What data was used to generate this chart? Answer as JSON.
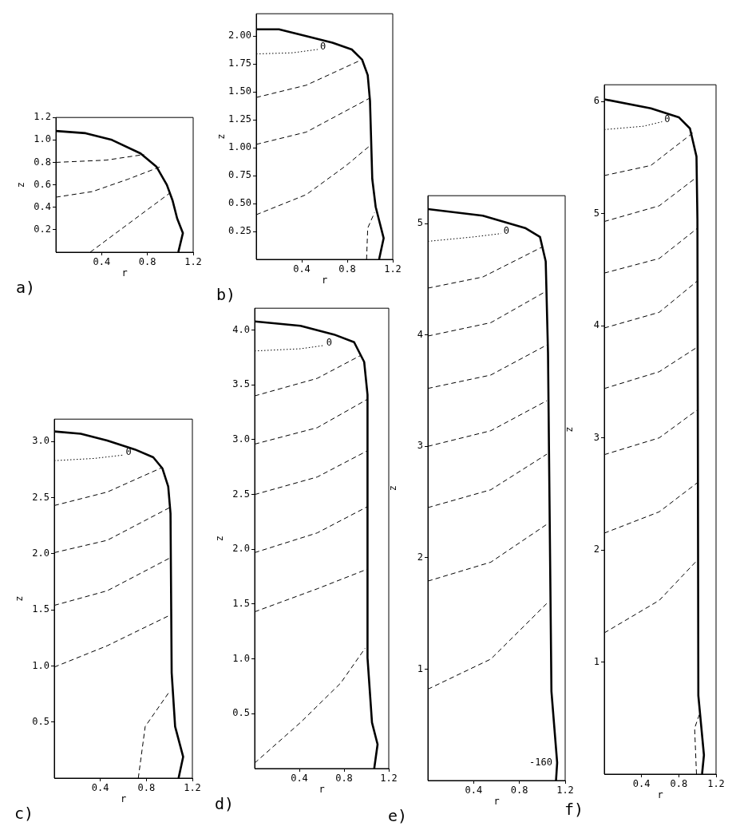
{
  "chart_data": [
    {
      "type": "line",
      "title": "a)",
      "xlabel": "r",
      "ylabel": "z",
      "xlim": [
        0,
        1.2
      ],
      "xticks": [
        0.4,
        0.8,
        1.2
      ],
      "ylim": [
        0,
        1.2
      ],
      "yticks": [
        0.2,
        0.4,
        0.6,
        0.8,
        {
          "value": 1.0,
          "label": "1.0"
        },
        1.2
      ],
      "grid": false,
      "marker": "none",
      "series": [
        {
          "color": "#000000",
          "line_style": "solid",
          "x": [
            0,
            0.26,
            0.49,
            0.74,
            0.88,
            0.97,
            1.02,
            1.06,
            1.11,
            1.07
          ],
          "values": [
            1.08,
            1.06,
            1.0,
            0.88,
            0.76,
            0.6,
            0.46,
            0.3,
            0.17,
            0
          ]
        },
        {
          "color": "#000000",
          "line_style": "dashed",
          "x": [
            0,
            0.44,
            0.77
          ],
          "values": [
            0.8,
            0.82,
            0.87
          ]
        },
        {
          "color": "#000000",
          "line_style": "dashed",
          "x": [
            0,
            0.32,
            0.63,
            0.91
          ],
          "values": [
            0.49,
            0.54,
            0.65,
            0.76
          ]
        },
        {
          "color": "#000000",
          "line_style": "dashed",
          "x": [
            0.3,
            0.63,
            1.0
          ],
          "values": [
            0,
            0.25,
            0.53
          ]
        }
      ]
    },
    {
      "type": "line",
      "title": "b)",
      "xlabel": "r",
      "ylabel": "z",
      "xlim": [
        0,
        1.2
      ],
      "xticks": [
        0.4,
        0.8,
        1.2
      ],
      "ylim": [
        0,
        2.2
      ],
      "yticks": [
        {
          "value": 0.25,
          "label": "0.25"
        },
        {
          "value": 0.5,
          "label": "0.50"
        },
        {
          "value": 0.75,
          "label": "0.75"
        },
        {
          "value": 1.0,
          "label": "1.00"
        },
        {
          "value": 1.25,
          "label": "1.25"
        },
        {
          "value": 1.5,
          "label": "1.50"
        },
        {
          "value": 1.75,
          "label": "1.75"
        },
        {
          "value": 2.0,
          "label": "2.00"
        }
      ],
      "grid": false,
      "marker": "none",
      "annotations": [
        {
          "text": "0",
          "x": 0.54,
          "y": 1.88
        }
      ],
      "series": [
        {
          "color": "#000000",
          "line_style": "solid",
          "x": [
            0,
            0.2,
            0.44,
            0.67,
            0.84,
            0.93,
            0.98,
            1.0,
            1.02,
            1.05,
            1.12,
            1.08
          ],
          "values": [
            2.06,
            2.06,
            2.0,
            1.94,
            1.88,
            1.79,
            1.65,
            1.42,
            0.72,
            0.47,
            0.19,
            0
          ]
        },
        {
          "color": "#000000",
          "line_style": "dotted",
          "x": [
            0,
            0.32,
            0.54
          ],
          "values": [
            1.84,
            1.85,
            1.88
          ]
        },
        {
          "color": "#000000",
          "line_style": "dashed",
          "x": [
            0,
            0.44,
            0.91
          ],
          "values": [
            1.45,
            1.56,
            1.78
          ]
        },
        {
          "color": "#000000",
          "line_style": "dashed",
          "x": [
            0,
            0.44,
            0.99
          ],
          "values": [
            1.03,
            1.14,
            1.44
          ]
        },
        {
          "color": "#000000",
          "line_style": "dashed",
          "x": [
            0,
            0.44,
            0.79,
            0.99
          ],
          "values": [
            0.4,
            0.58,
            0.84,
            1.01
          ]
        },
        {
          "color": "#000000",
          "line_style": "dashed",
          "x": [
            0.97,
            0.98,
            1.04
          ],
          "values": [
            0,
            0.28,
            0.42
          ]
        }
      ]
    },
    {
      "type": "line",
      "title": "c)",
      "xlabel": "r",
      "ylabel": "z",
      "xlim": [
        0,
        1.2
      ],
      "xticks": [
        0.4,
        0.8,
        1.2
      ],
      "ylim": [
        0,
        3.2
      ],
      "yticks": [
        0.5,
        {
          "value": 1.0,
          "label": "1.0"
        },
        1.5,
        {
          "value": 2.0,
          "label": "2.0"
        },
        2.5,
        {
          "value": 3.0,
          "label": "3.0"
        }
      ],
      "grid": false,
      "marker": "none",
      "annotations": [
        {
          "text": "0",
          "x": 0.6,
          "y": 2.88
        }
      ],
      "series": [
        {
          "color": "#000000",
          "line_style": "solid",
          "x": [
            0,
            0.23,
            0.46,
            0.7,
            0.86,
            0.94,
            0.99,
            1.01,
            1.02,
            1.05,
            1.12,
            1.08
          ],
          "values": [
            3.09,
            3.07,
            3.01,
            2.93,
            2.86,
            2.76,
            2.6,
            2.36,
            0.94,
            0.46,
            0.19,
            0
          ]
        },
        {
          "color": "#000000",
          "line_style": "dotted",
          "x": [
            0,
            0.35,
            0.6
          ],
          "values": [
            2.83,
            2.85,
            2.88
          ]
        },
        {
          "color": "#000000",
          "line_style": "dashed",
          "x": [
            0,
            0.46,
            0.94
          ],
          "values": [
            2.43,
            2.55,
            2.77
          ]
        },
        {
          "color": "#000000",
          "line_style": "dashed",
          "x": [
            0,
            0.46,
            1.0
          ],
          "values": [
            2.01,
            2.12,
            2.41
          ]
        },
        {
          "color": "#000000",
          "line_style": "dashed",
          "x": [
            0,
            0.46,
            1.0
          ],
          "values": [
            1.54,
            1.67,
            1.96
          ]
        },
        {
          "color": "#000000",
          "line_style": "dashed",
          "x": [
            0,
            0.46,
            1.0
          ],
          "values": [
            0.99,
            1.18,
            1.45
          ]
        },
        {
          "color": "#000000",
          "line_style": "dashed",
          "x": [
            0.73,
            0.79,
            1.0
          ],
          "values": [
            0,
            0.46,
            0.77
          ]
        }
      ]
    },
    {
      "type": "line",
      "title": "d)",
      "xlabel": "r",
      "ylabel": "z",
      "xlim": [
        0,
        1.2
      ],
      "xticks": [
        0.4,
        0.8,
        1.2
      ],
      "ylim": [
        0,
        4.2
      ],
      "yticks": [
        0.5,
        {
          "value": 1.0,
          "label": "1.0"
        },
        1.5,
        {
          "value": 2.0,
          "label": "2.0"
        },
        2.5,
        {
          "value": 3.0,
          "label": "3.0"
        },
        3.5,
        {
          "value": 4.0,
          "label": "4.0"
        }
      ],
      "grid": false,
      "marker": "none",
      "annotations": [
        {
          "text": "0",
          "x": 0.62,
          "y": 3.86
        }
      ],
      "series": [
        {
          "color": "#000000",
          "line_style": "solid",
          "x": [
            0,
            0.41,
            0.71,
            0.89,
            0.98,
            1.01,
            1.01,
            1.05,
            1.1,
            1.07
          ],
          "values": [
            4.08,
            4.04,
            3.96,
            3.89,
            3.71,
            3.41,
            1.01,
            0.42,
            0.22,
            0
          ]
        },
        {
          "color": "#000000",
          "line_style": "dotted",
          "x": [
            0,
            0.41,
            0.62
          ],
          "values": [
            3.81,
            3.83,
            3.86
          ]
        },
        {
          "color": "#000000",
          "line_style": "dashed",
          "x": [
            0,
            0.56,
            0.95
          ],
          "values": [
            3.4,
            3.56,
            3.77
          ]
        },
        {
          "color": "#000000",
          "line_style": "dashed",
          "x": [
            0,
            0.56,
            1.01
          ],
          "values": [
            2.96,
            3.11,
            3.37
          ]
        },
        {
          "color": "#000000",
          "line_style": "dashed",
          "x": [
            0,
            0.56,
            1.01
          ],
          "values": [
            2.5,
            2.66,
            2.9
          ]
        },
        {
          "color": "#000000",
          "line_style": "dashed",
          "x": [
            0,
            0.56,
            1.01
          ],
          "values": [
            1.97,
            2.15,
            2.39
          ]
        },
        {
          "color": "#000000",
          "line_style": "dashed",
          "x": [
            0,
            0.56,
            1.01
          ],
          "values": [
            1.43,
            1.64,
            1.82
          ]
        },
        {
          "color": "#000000",
          "line_style": "dashed",
          "x": [
            0,
            0.41,
            0.77,
            0.99
          ],
          "values": [
            0.05,
            0.42,
            0.78,
            1.1
          ]
        }
      ]
    },
    {
      "type": "line",
      "title": "e)",
      "xlabel": "r",
      "ylabel": "z",
      "xlim": [
        0,
        1.2
      ],
      "xticks": [
        0.4,
        0.8,
        1.2
      ],
      "ylim": [
        0,
        5.25
      ],
      "yticks": [
        1,
        2,
        3,
        4,
        5
      ],
      "grid": false,
      "marker": "none",
      "annotations": [
        {
          "text": "0",
          "x": 0.64,
          "y": 4.91
        },
        {
          "text": "-160",
          "x": 1.13,
          "y": 0.16
        }
      ],
      "series": [
        {
          "color": "#000000",
          "line_style": "solid",
          "x": [
            0,
            0.48,
            0.85,
            0.98,
            1.03,
            1.05,
            1.08,
            1.13,
            1.12
          ],
          "values": [
            5.13,
            5.07,
            4.96,
            4.88,
            4.66,
            3.84,
            0.8,
            0.16,
            0
          ]
        },
        {
          "color": "#000000",
          "line_style": "dotted",
          "x": [
            0,
            0.4,
            0.64
          ],
          "values": [
            4.84,
            4.88,
            4.91
          ]
        },
        {
          "color": "#000000",
          "line_style": "dashed",
          "x": [
            0,
            0.48,
            1.0
          ],
          "values": [
            4.42,
            4.52,
            4.79
          ]
        },
        {
          "color": "#000000",
          "line_style": "dashed",
          "x": [
            0,
            0.55,
            1.03
          ],
          "values": [
            3.99,
            4.11,
            4.39
          ]
        },
        {
          "color": "#000000",
          "line_style": "dashed",
          "x": [
            0,
            0.55,
            1.04
          ],
          "values": [
            3.52,
            3.64,
            3.91
          ]
        },
        {
          "color": "#000000",
          "line_style": "dashed",
          "x": [
            0,
            0.55,
            1.04
          ],
          "values": [
            3.0,
            3.14,
            3.41
          ]
        },
        {
          "color": "#000000",
          "line_style": "dashed",
          "x": [
            0,
            0.55,
            1.04
          ],
          "values": [
            2.45,
            2.61,
            2.93
          ]
        },
        {
          "color": "#000000",
          "line_style": "dashed",
          "x": [
            0,
            0.55,
            1.04
          ],
          "values": [
            1.79,
            1.96,
            2.3
          ]
        },
        {
          "color": "#000000",
          "line_style": "dashed",
          "x": [
            0,
            0.55,
            1.04
          ],
          "values": [
            0.82,
            1.09,
            1.59
          ]
        }
      ]
    },
    {
      "type": "line",
      "title": "f)",
      "xlabel": "r",
      "ylabel": "z",
      "xlim": [
        0,
        1.2
      ],
      "xticks": [
        0.4,
        0.8,
        1.2
      ],
      "ylim": [
        0,
        6.15
      ],
      "yticks": [
        1,
        2,
        3,
        4,
        5,
        6
      ],
      "grid": false,
      "marker": "none",
      "annotations": [
        {
          "text": "0",
          "x": 0.62,
          "y": 5.82
        }
      ],
      "series": [
        {
          "color": "#000000",
          "line_style": "solid",
          "x": [
            0,
            0.5,
            0.8,
            0.92,
            0.99,
            1.0,
            1.01,
            1.07,
            1.05
          ],
          "values": [
            6.02,
            5.94,
            5.86,
            5.76,
            5.51,
            4.95,
            0.7,
            0.17,
            0
          ]
        },
        {
          "color": "#000000",
          "line_style": "dotted",
          "x": [
            0,
            0.42,
            0.62
          ],
          "values": [
            5.75,
            5.78,
            5.82
          ]
        },
        {
          "color": "#000000",
          "line_style": "dashed",
          "x": [
            0,
            0.5,
            0.95
          ],
          "values": [
            5.34,
            5.43,
            5.72
          ]
        },
        {
          "color": "#000000",
          "line_style": "dashed",
          "x": [
            0,
            0.59,
            1.0
          ],
          "values": [
            4.93,
            5.07,
            5.33
          ]
        },
        {
          "color": "#000000",
          "line_style": "dashed",
          "x": [
            0,
            0.59,
            1.0
          ],
          "values": [
            4.47,
            4.6,
            4.87
          ]
        },
        {
          "color": "#000000",
          "line_style": "dashed",
          "x": [
            0,
            0.59,
            1.0
          ],
          "values": [
            3.98,
            4.12,
            4.4
          ]
        },
        {
          "color": "#000000",
          "line_style": "dashed",
          "x": [
            0,
            0.59,
            1.0
          ],
          "values": [
            3.44,
            3.59,
            3.81
          ]
        },
        {
          "color": "#000000",
          "line_style": "dashed",
          "x": [
            0,
            0.59,
            1.0
          ],
          "values": [
            2.85,
            3.0,
            3.25
          ]
        },
        {
          "color": "#000000",
          "line_style": "dashed",
          "x": [
            0,
            0.59,
            1.0
          ],
          "values": [
            2.15,
            2.34,
            2.6
          ]
        },
        {
          "color": "#000000",
          "line_style": "dashed",
          "x": [
            0,
            0.59,
            1.0
          ],
          "values": [
            1.26,
            1.55,
            1.91
          ]
        },
        {
          "color": "#000000",
          "line_style": "dashed",
          "x": [
            0.99,
            0.97,
            1.02
          ],
          "values": [
            0,
            0.41,
            0.53
          ]
        }
      ]
    }
  ]
}
